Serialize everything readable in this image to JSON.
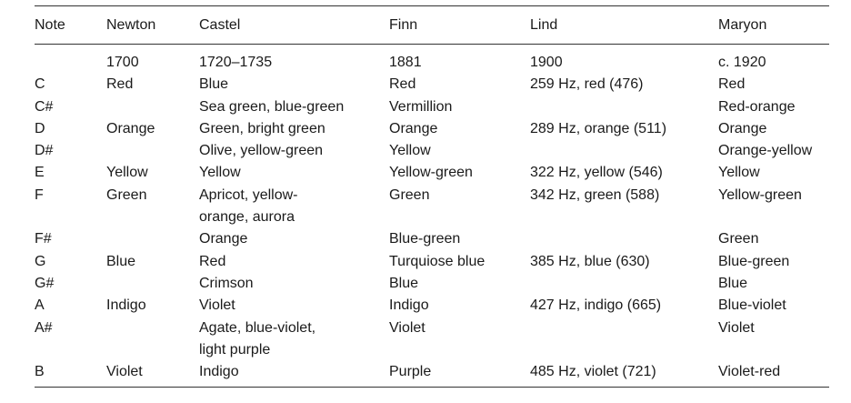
{
  "table": {
    "headers": [
      "Note",
      "Newton",
      "Castel",
      "Finn",
      "Lind",
      "Maryon"
    ],
    "rows": [
      [
        "",
        "1700",
        "1720–1735",
        "1881",
        "1900",
        "c. 1920"
      ],
      [
        "C",
        "Red",
        "Blue",
        "Red",
        "259 Hz, red (476)",
        "Red"
      ],
      [
        "C#",
        "",
        "Sea green, blue-green",
        "Vermillion",
        "",
        "Red-orange"
      ],
      [
        "D",
        "Orange",
        "Green, bright green",
        "Orange",
        "289 Hz, orange (511)",
        "Orange"
      ],
      [
        "D#",
        "",
        "Olive, yellow-green",
        "Yellow",
        "",
        "Orange-yellow"
      ],
      [
        "E",
        "Yellow",
        "Yellow",
        "Yellow-green",
        "322 Hz, yellow (546)",
        "Yellow"
      ],
      [
        "F",
        "Green",
        "Apricot, yellow-\norange, aurora",
        "Green",
        "342 Hz, green (588)",
        "Yellow-green"
      ],
      [
        "F#",
        "",
        "Orange",
        "Blue-green",
        "",
        "Green"
      ],
      [
        "G",
        "Blue",
        "Red",
        "Turquiose blue",
        "385 Hz, blue (630)",
        "Blue-green"
      ],
      [
        "G#",
        "",
        "Crimson",
        "Blue",
        "",
        "Blue"
      ],
      [
        "A",
        "Indigo",
        "Violet",
        "Indigo",
        "427 Hz, indigo (665)",
        "Blue-violet"
      ],
      [
        "A#",
        "",
        "Agate, blue-violet,\nlight purple",
        "Violet",
        "",
        "Violet"
      ],
      [
        "B",
        "Violet",
        "Indigo",
        "Purple",
        "485 Hz, violet (721)",
        "Violet-red"
      ]
    ]
  }
}
